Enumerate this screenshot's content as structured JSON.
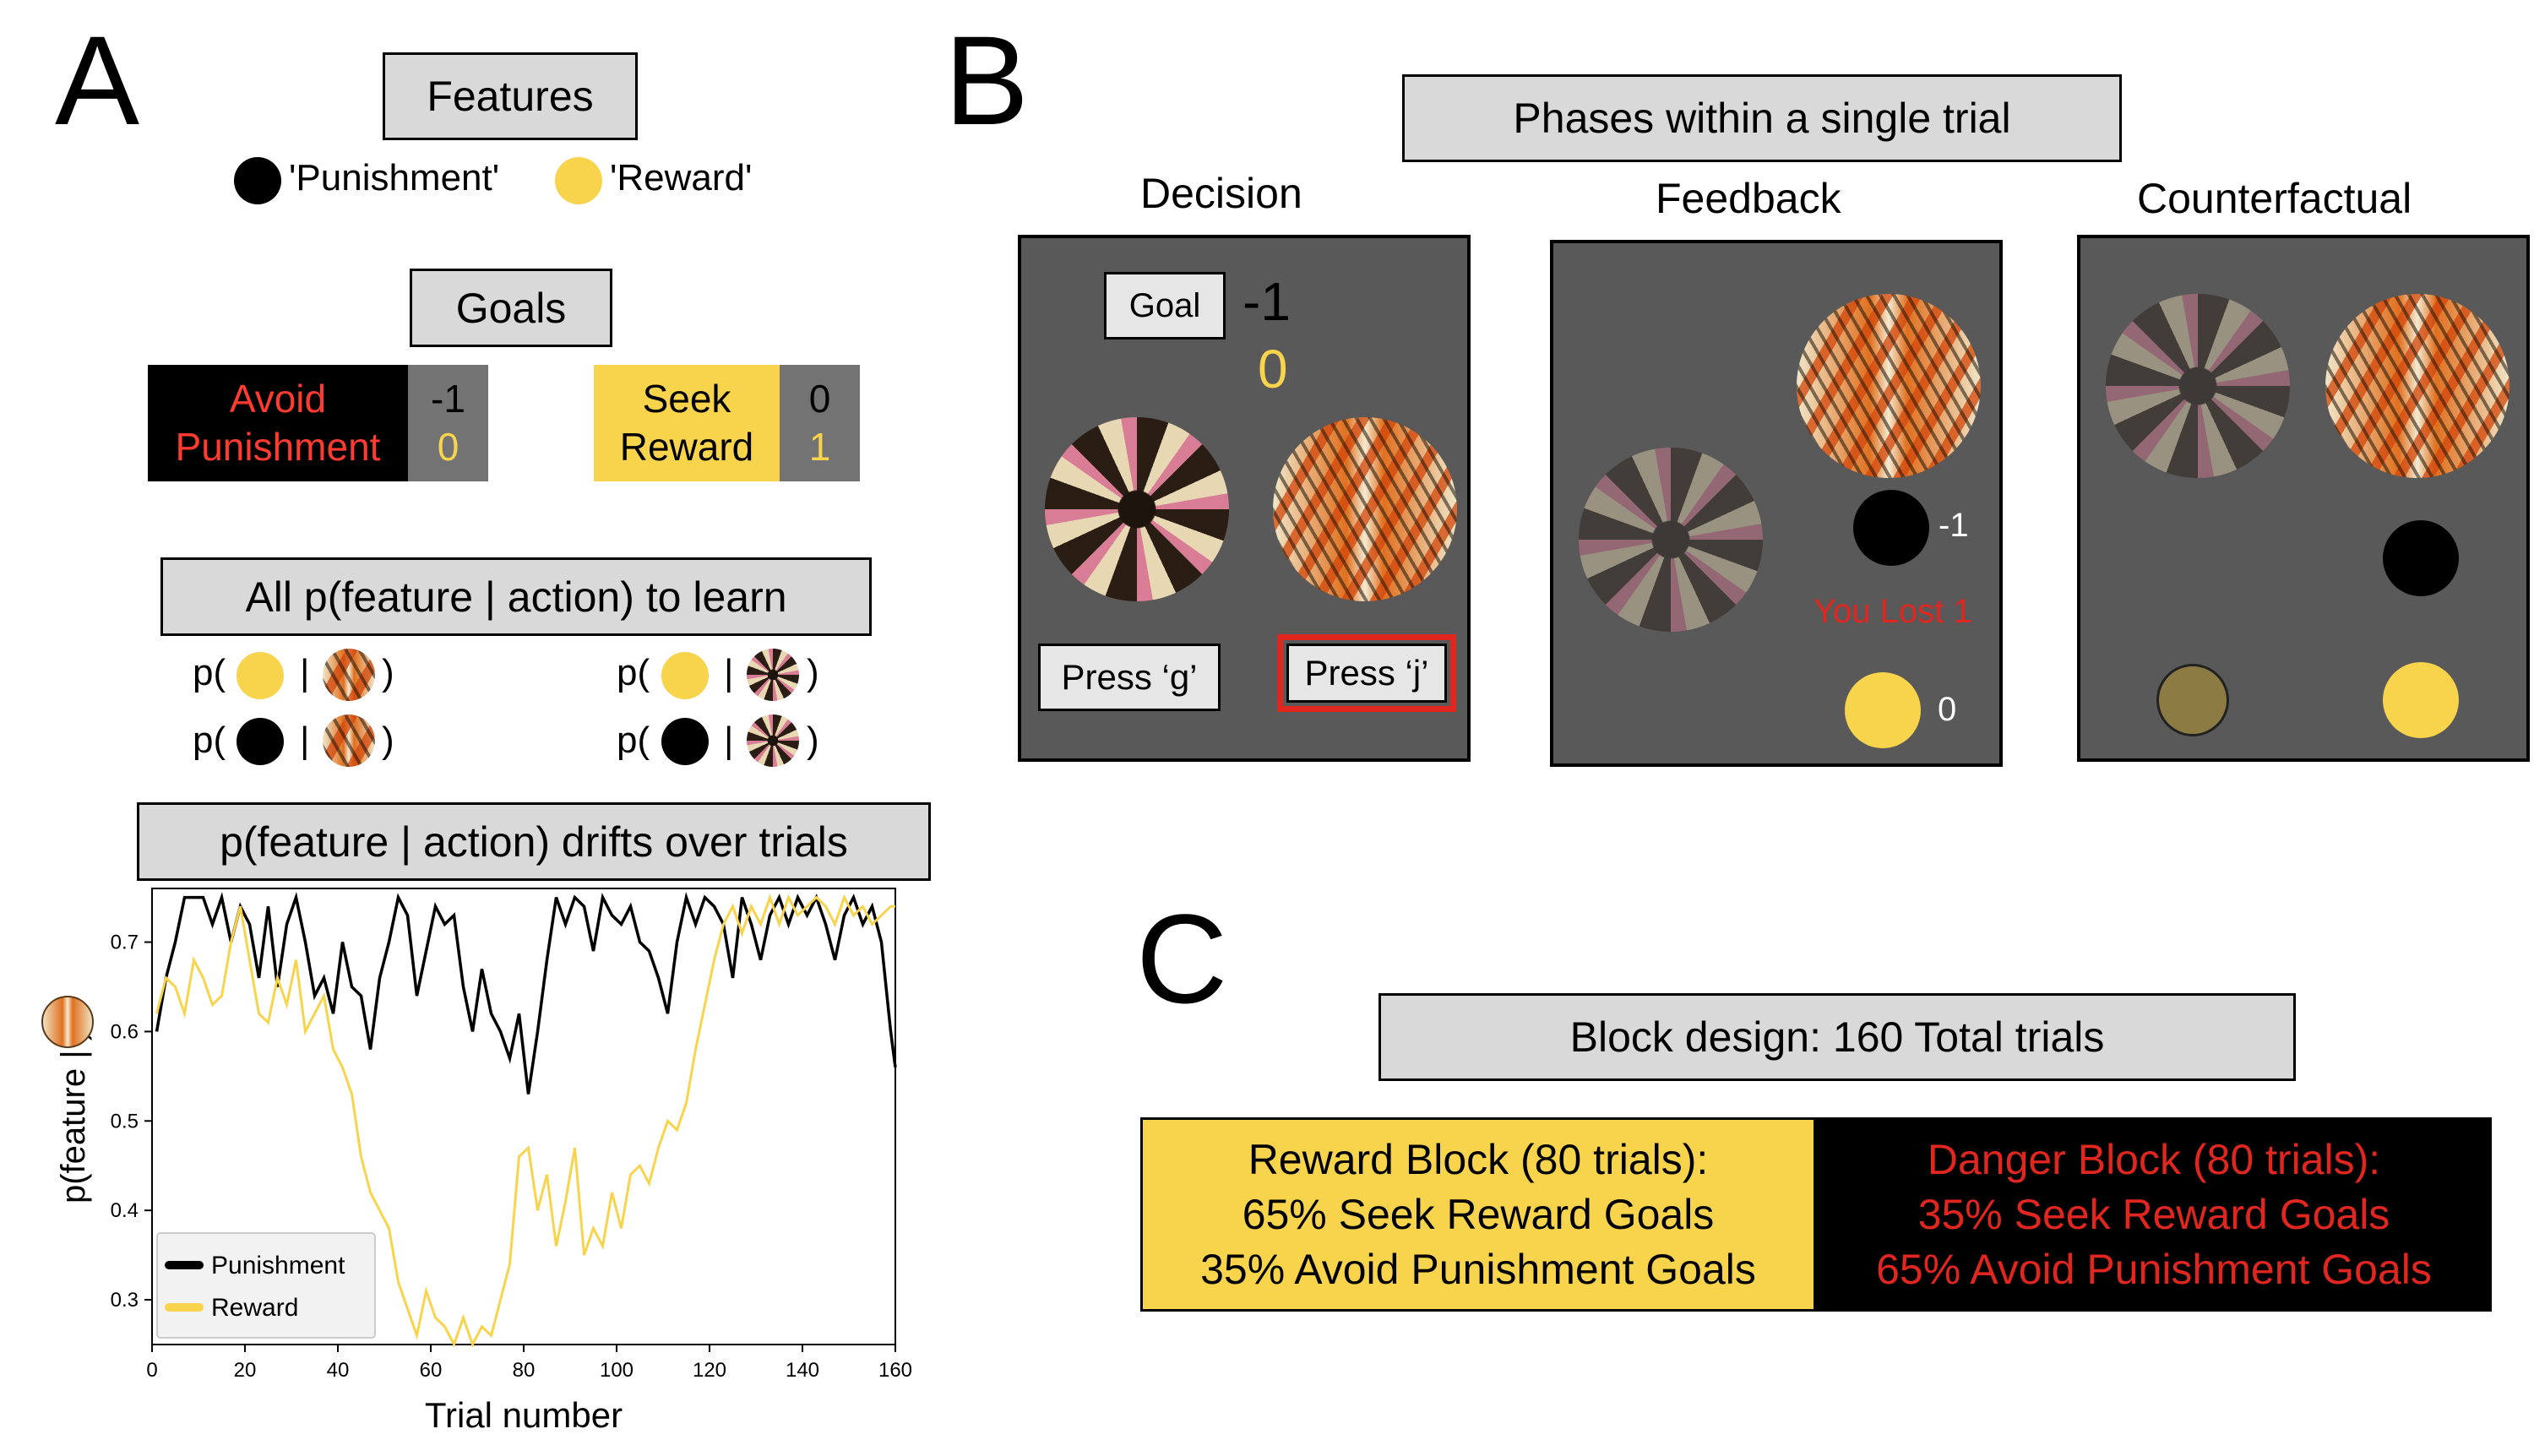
{
  "panels": {
    "a": "A",
    "b": "B",
    "c": "C"
  },
  "features": {
    "title": "Features",
    "punishment_label": "'Punishment'",
    "reward_label": "'Reward'"
  },
  "goals": {
    "title": "Goals",
    "avoid": {
      "line1": "Avoid",
      "line2": "Punishment",
      "val1": "-1",
      "val2": "0"
    },
    "seek": {
      "line1": "Seek",
      "line2": "Reward",
      "val1": "0",
      "val2": "1"
    }
  },
  "learn": {
    "title": "All p(feature | action) to learn",
    "p_open": "p(",
    "bar": "|",
    "close": ")"
  },
  "drift": {
    "title": "p(feature | action) drifts over trials"
  },
  "phases": {
    "title": "Phases within a single trial",
    "decision": {
      "label": "Decision",
      "goal_button": "Goal",
      "goal_val1": "-1",
      "goal_val2": "0",
      "press_g": "Press ‘g’",
      "press_j": "Press ‘j’"
    },
    "feedback": {
      "label": "Feedback",
      "loss_value": "-1",
      "reward_value": "0",
      "message": "You Lost 1"
    },
    "counterfactual": {
      "label": "Counterfactual"
    }
  },
  "block": {
    "title": "Block design: 160 Total trials",
    "reward": {
      "line1": "Reward Block (80 trials):",
      "line2": "65% Seek Reward Goals",
      "line3": "35% Avoid Punishment Goals"
    },
    "danger": {
      "line1": "Danger Block (80 trials):",
      "line2": "35% Seek Reward Goals",
      "line3": "65% Avoid Punishment Goals"
    }
  },
  "colors": {
    "punishment": "#000000",
    "reward": "#f8d44c",
    "danger_text": "#e0261f",
    "box_gray": "#d9d9d9",
    "screen_gray": "#595959"
  },
  "chart_data": {
    "type": "line",
    "xlabel": "Trial number",
    "ylabel": "p(feature | )",
    "xlim": [
      0,
      160
    ],
    "ylim": [
      0.25,
      0.76
    ],
    "xticks": [
      "0",
      "20",
      "40",
      "60",
      "80",
      "100",
      "120",
      "140",
      "160"
    ],
    "yticks": [
      "0.3",
      "0.4",
      "0.5",
      "0.6",
      "0.7"
    ],
    "legend_position": "bottom-left",
    "series": [
      {
        "name": "Punishment",
        "color": "#000000",
        "x": [
          1,
          3,
          5,
          7,
          9,
          11,
          13,
          15,
          17,
          19,
          21,
          23,
          25,
          27,
          29,
          31,
          33,
          35,
          37,
          39,
          41,
          43,
          45,
          47,
          49,
          51,
          53,
          55,
          57,
          59,
          61,
          63,
          65,
          67,
          69,
          71,
          73,
          75,
          77,
          79,
          81,
          83,
          85,
          87,
          89,
          91,
          93,
          95,
          97,
          99,
          101,
          103,
          105,
          107,
          109,
          111,
          113,
          115,
          117,
          119,
          121,
          123,
          125,
          127,
          129,
          131,
          133,
          135,
          137,
          139,
          141,
          143,
          145,
          147,
          149,
          151,
          153,
          155,
          157,
          159,
          160
        ],
        "y": [
          0.6,
          0.66,
          0.7,
          0.75,
          0.75,
          0.75,
          0.72,
          0.75,
          0.7,
          0.74,
          0.72,
          0.66,
          0.74,
          0.65,
          0.72,
          0.75,
          0.7,
          0.64,
          0.66,
          0.62,
          0.7,
          0.65,
          0.64,
          0.58,
          0.66,
          0.7,
          0.75,
          0.73,
          0.64,
          0.69,
          0.74,
          0.72,
          0.73,
          0.65,
          0.6,
          0.67,
          0.62,
          0.6,
          0.57,
          0.62,
          0.53,
          0.6,
          0.68,
          0.75,
          0.72,
          0.75,
          0.74,
          0.69,
          0.75,
          0.73,
          0.72,
          0.74,
          0.7,
          0.69,
          0.66,
          0.62,
          0.7,
          0.75,
          0.72,
          0.75,
          0.74,
          0.72,
          0.66,
          0.75,
          0.72,
          0.68,
          0.73,
          0.75,
          0.72,
          0.75,
          0.73,
          0.75,
          0.72,
          0.68,
          0.73,
          0.75,
          0.72,
          0.74,
          0.7,
          0.6,
          0.56
        ]
      },
      {
        "name": "Reward",
        "color": "#f8d44c",
        "x": [
          1,
          3,
          5,
          7,
          9,
          11,
          13,
          15,
          17,
          19,
          21,
          23,
          25,
          27,
          29,
          31,
          33,
          35,
          37,
          39,
          41,
          43,
          45,
          47,
          49,
          51,
          53,
          55,
          57,
          59,
          61,
          63,
          65,
          67,
          69,
          71,
          73,
          75,
          77,
          79,
          81,
          83,
          85,
          87,
          89,
          91,
          93,
          95,
          97,
          99,
          101,
          103,
          105,
          107,
          109,
          111,
          113,
          115,
          117,
          119,
          121,
          123,
          125,
          127,
          129,
          131,
          133,
          135,
          137,
          139,
          141,
          143,
          145,
          147,
          149,
          151,
          153,
          155,
          157,
          159,
          160
        ],
        "y": [
          0.62,
          0.66,
          0.65,
          0.62,
          0.68,
          0.66,
          0.63,
          0.64,
          0.7,
          0.74,
          0.68,
          0.62,
          0.61,
          0.66,
          0.63,
          0.68,
          0.6,
          0.62,
          0.64,
          0.58,
          0.56,
          0.53,
          0.46,
          0.42,
          0.4,
          0.38,
          0.32,
          0.29,
          0.26,
          0.31,
          0.28,
          0.27,
          0.25,
          0.28,
          0.25,
          0.27,
          0.26,
          0.3,
          0.34,
          0.46,
          0.47,
          0.4,
          0.44,
          0.36,
          0.41,
          0.47,
          0.35,
          0.38,
          0.36,
          0.42,
          0.38,
          0.44,
          0.45,
          0.43,
          0.47,
          0.5,
          0.49,
          0.52,
          0.58,
          0.63,
          0.68,
          0.72,
          0.74,
          0.71,
          0.74,
          0.72,
          0.75,
          0.72,
          0.75,
          0.73,
          0.74,
          0.75,
          0.74,
          0.72,
          0.75,
          0.73,
          0.74,
          0.72,
          0.73,
          0.74,
          0.74
        ]
      }
    ]
  }
}
